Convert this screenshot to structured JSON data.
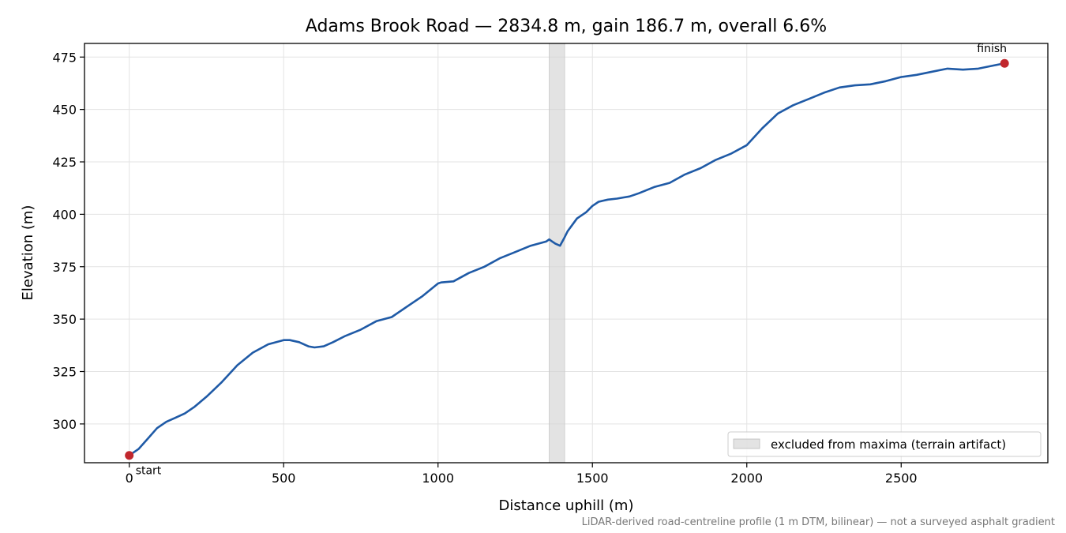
{
  "chart_data": {
    "type": "line",
    "title": "Adams Brook Road — 2834.8 m, gain 186.7 m, overall 6.6%",
    "xlabel": "Distance uphill (m)",
    "ylabel": "Elevation (m)",
    "xlim": [
      -145,
      2975
    ],
    "ylim": [
      281.5,
      481.5
    ],
    "xticks": [
      0,
      500,
      1000,
      1500,
      2000,
      2500
    ],
    "yticks": [
      300,
      325,
      350,
      375,
      400,
      425,
      450,
      475
    ],
    "grid": true,
    "legend": {
      "placement": "lower-right",
      "entries": [
        "excluded from maxima (terrain artifact)"
      ]
    },
    "excluded_range": {
      "label": "excluded from maxima (terrain artifact)",
      "x": [
        1360,
        1410
      ]
    },
    "series": [
      {
        "color": "#1f5aa6",
        "x": [
          0,
          30,
          60,
          90,
          120,
          150,
          180,
          210,
          250,
          300,
          350,
          400,
          450,
          500,
          520,
          550,
          580,
          600,
          630,
          660,
          700,
          750,
          800,
          850,
          900,
          950,
          1000,
          1010,
          1050,
          1100,
          1150,
          1200,
          1250,
          1300,
          1350,
          1360,
          1370,
          1380,
          1395,
          1410,
          1420,
          1430,
          1450,
          1480,
          1500,
          1520,
          1550,
          1580,
          1600,
          1620,
          1650,
          1700,
          1750,
          1800,
          1850,
          1900,
          1950,
          2000,
          2050,
          2100,
          2150,
          2200,
          2250,
          2300,
          2350,
          2400,
          2450,
          2500,
          2550,
          2600,
          2650,
          2700,
          2750,
          2800,
          2834.8
        ],
        "y": [
          285,
          288,
          293,
          298,
          301,
          303,
          305,
          308,
          313,
          320,
          328,
          334,
          338,
          340,
          340,
          339,
          337,
          336.5,
          337,
          339,
          342,
          345,
          349,
          351,
          356,
          361,
          367,
          367.5,
          368,
          372,
          375,
          379,
          382,
          385,
          387,
          388,
          387,
          386,
          385,
          389,
          392,
          394,
          398,
          401,
          404,
          406,
          407,
          407.5,
          408,
          408.5,
          410,
          413,
          415,
          419,
          422,
          426,
          429,
          433,
          441,
          448,
          452,
          455,
          458,
          460.5,
          461.5,
          462,
          463.5,
          465.5,
          466.5,
          468,
          469.5,
          469,
          469.5,
          471,
          472
        ]
      }
    ],
    "annotations": [
      {
        "text": "start",
        "x": 0,
        "y": 285
      },
      {
        "text": "finish",
        "x": 2834.8,
        "y": 472
      }
    ],
    "marker_color": "#c1272d",
    "footnote": "LiDAR-derived road-centreline profile (1 m DTM, bilinear) — not a surveyed asphalt gradient"
  }
}
